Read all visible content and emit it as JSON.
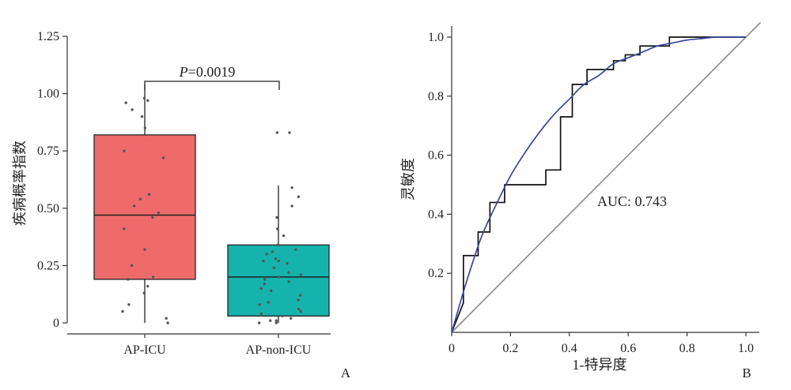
{
  "chart_data": [
    {
      "panel": "A",
      "type": "box",
      "title": "",
      "xlabel": "",
      "ylabel": "疾病概率指数",
      "ylim": [
        0,
        1.25
      ],
      "yticks": [
        "0",
        "0.25",
        "0.50",
        "0.75",
        "1.00",
        "1.25"
      ],
      "categories": [
        "AP-ICU",
        "AP-non-ICU"
      ],
      "boxes": [
        {
          "category": "AP-ICU",
          "color": "#ef6b6b",
          "q1": 0.19,
          "median": 0.47,
          "q3": 0.82,
          "whisker_low": 0.0,
          "whisker_high": 1.04,
          "points": [
            0.98,
            0.97,
            0.96,
            0.93,
            0.9,
            0.85,
            0.75,
            0.72,
            0.56,
            0.54,
            0.51,
            0.48,
            0.46,
            0.41,
            0.32,
            0.25,
            0.2,
            0.19,
            0.16,
            0.13,
            0.08,
            0.05,
            0.02,
            0.0
          ]
        },
        {
          "category": "AP-non-ICU",
          "color": "#16b3ad",
          "q1": 0.03,
          "median": 0.2,
          "q3": 0.34,
          "whisker_low": 0.0,
          "whisker_high": 0.6,
          "points": [
            0.83,
            0.83,
            0.59,
            0.55,
            0.51,
            0.46,
            0.41,
            0.38,
            0.34,
            0.32,
            0.31,
            0.3,
            0.28,
            0.27,
            0.27,
            0.26,
            0.24,
            0.22,
            0.21,
            0.2,
            0.19,
            0.18,
            0.17,
            0.15,
            0.14,
            0.12,
            0.1,
            0.09,
            0.08,
            0.06,
            0.05,
            0.04,
            0.03,
            0.02,
            0.01,
            0.01,
            0.0,
            0.0
          ]
        }
      ],
      "annotation": {
        "p_label": "P",
        "p_value": "=0.0019"
      },
      "panel_label": "A",
      "colors": {
        "box_red": "#ef6b6b",
        "box_teal": "#16b3ad"
      }
    },
    {
      "panel": "B",
      "type": "line",
      "title": "",
      "xlabel": "1-特异度",
      "ylabel": "灵敏度",
      "xlim": [
        0,
        1.0
      ],
      "ylim": [
        0,
        1.0
      ],
      "xticks": [
        "0",
        "0.2",
        "0.4",
        "0.6",
        "0.8",
        "1.0"
      ],
      "yticks": [
        "0.2",
        "0.4",
        "0.6",
        "0.8",
        "1.0"
      ],
      "series": [
        {
          "style": "step",
          "color": "#111111",
          "points": [
            [
              0,
              0
            ],
            [
              0.04,
              0.1
            ],
            [
              0.04,
              0.26
            ],
            [
              0.09,
              0.26
            ],
            [
              0.09,
              0.34
            ],
            [
              0.13,
              0.34
            ],
            [
              0.13,
              0.44
            ],
            [
              0.18,
              0.44
            ],
            [
              0.18,
              0.5
            ],
            [
              0.32,
              0.5
            ],
            [
              0.32,
              0.55
            ],
            [
              0.37,
              0.55
            ],
            [
              0.37,
              0.73
            ],
            [
              0.41,
              0.73
            ],
            [
              0.41,
              0.84
            ],
            [
              0.46,
              0.84
            ],
            [
              0.46,
              0.89
            ],
            [
              0.55,
              0.89
            ],
            [
              0.55,
              0.92
            ],
            [
              0.59,
              0.92
            ],
            [
              0.59,
              0.94
            ],
            [
              0.64,
              0.94
            ],
            [
              0.64,
              0.97
            ],
            [
              0.74,
              0.97
            ],
            [
              0.74,
              1.0
            ],
            [
              1.0,
              1.0
            ]
          ]
        },
        {
          "style": "smooth",
          "color": "#3a4a9a",
          "points": [
            [
              0,
              0
            ],
            [
              0.05,
              0.17
            ],
            [
              0.1,
              0.32
            ],
            [
              0.15,
              0.43
            ],
            [
              0.2,
              0.53
            ],
            [
              0.25,
              0.61
            ],
            [
              0.3,
              0.68
            ],
            [
              0.35,
              0.74
            ],
            [
              0.4,
              0.79
            ],
            [
              0.45,
              0.84
            ],
            [
              0.5,
              0.87
            ],
            [
              0.55,
              0.91
            ],
            [
              0.6,
              0.93
            ],
            [
              0.65,
              0.95
            ],
            [
              0.7,
              0.97
            ],
            [
              0.75,
              0.98
            ],
            [
              0.8,
              0.99
            ],
            [
              0.85,
              0.995
            ],
            [
              0.9,
              1.0
            ],
            [
              1.0,
              1.0
            ]
          ]
        },
        {
          "style": "diagonal",
          "color": "#8a8a8a",
          "points": [
            [
              0,
              0
            ],
            [
              1.05,
              1.05
            ]
          ]
        }
      ],
      "annotation": {
        "auc": "AUC: 0.743"
      },
      "panel_label": "B",
      "colors": {
        "step": "#111111",
        "fit": "#3a4a9a",
        "reference": "#8a8a8a"
      }
    }
  ]
}
